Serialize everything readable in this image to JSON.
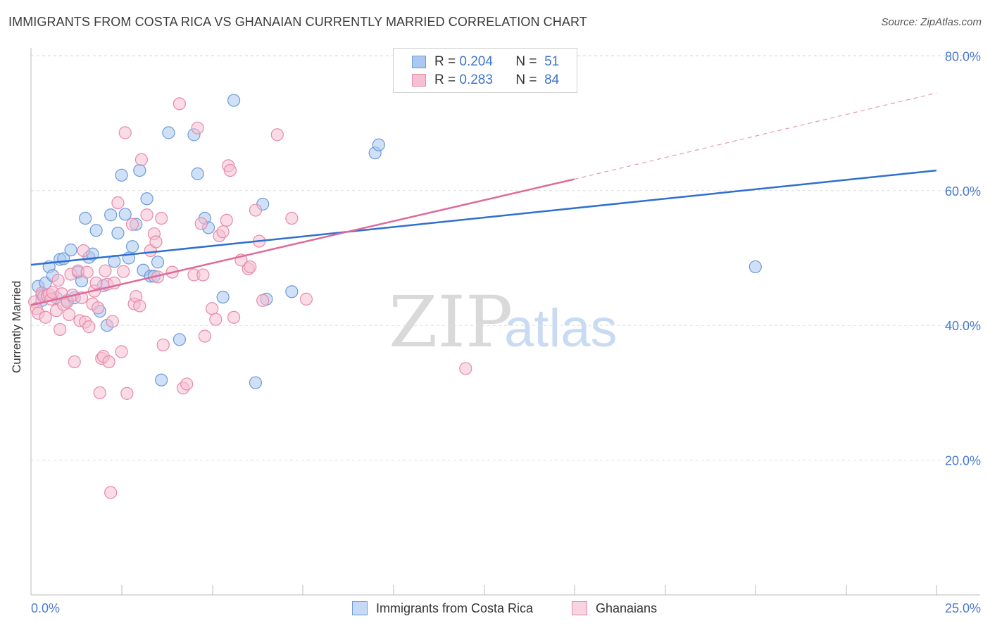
{
  "title": "IMMIGRANTS FROM COSTA RICA VS GHANAIAN CURRENTLY MARRIED CORRELATION CHART",
  "source": "Source: ZipAtlas.com",
  "watermark": {
    "zip": "ZIP",
    "atlas": "atlas"
  },
  "legend": {
    "r_label": "R =",
    "n_label": "N =",
    "series": [
      {
        "r": "0.204",
        "n": "51"
      },
      {
        "r": "0.283",
        "n": "84"
      }
    ]
  },
  "colors": {
    "blue_fill": "#aac8f0",
    "blue_stroke": "#6b9ad8",
    "blue_line": "#2f6fd0",
    "pink_fill": "#f6bfd2",
    "pink_stroke": "#e68aa8",
    "pink_line": "#e06a98",
    "grid": "#dedede",
    "tick_text": "#4a7bd0"
  },
  "chart_data": {
    "type": "scatter",
    "title": "IMMIGRANTS FROM COSTA RICA VS GHANAIAN CURRENTLY MARRIED CORRELATION CHART",
    "xlabel": "",
    "ylabel": "Currently Married",
    "xlim": [
      0,
      25
    ],
    "ylim": [
      0,
      80
    ],
    "x_tick_labels": [
      "0.0%",
      "25.0%"
    ],
    "y_ticks": [
      20,
      40,
      60,
      80
    ],
    "y_tick_labels": [
      "20.0%",
      "40.0%",
      "60.0%",
      "80.0%"
    ],
    "grid": true,
    "series": [
      {
        "name": "Immigrants from Costa Rica",
        "color": "blue",
        "trend": {
          "x0": 0,
          "y0": 49.0,
          "x1": 25,
          "y1": 63.0,
          "dashed_from": null
        },
        "points": [
          [
            0.2,
            45.8
          ],
          [
            0.3,
            44.5
          ],
          [
            0.3,
            43.7
          ],
          [
            0.4,
            46.3
          ],
          [
            0.5,
            48.7
          ],
          [
            0.6,
            47.4
          ],
          [
            0.7,
            44.1
          ],
          [
            0.8,
            49.8
          ],
          [
            0.9,
            49.9
          ],
          [
            1.0,
            43.7
          ],
          [
            1.1,
            51.2
          ],
          [
            1.2,
            44.1
          ],
          [
            1.3,
            47.9
          ],
          [
            1.4,
            46.6
          ],
          [
            1.5,
            55.9
          ],
          [
            1.6,
            50.1
          ],
          [
            1.7,
            50.6
          ],
          [
            1.8,
            54.1
          ],
          [
            1.9,
            42.1
          ],
          [
            2.0,
            45.9
          ],
          [
            2.1,
            40.0
          ],
          [
            2.2,
            56.4
          ],
          [
            2.3,
            49.5
          ],
          [
            2.4,
            53.7
          ],
          [
            2.5,
            62.3
          ],
          [
            2.6,
            56.5
          ],
          [
            2.7,
            50.0
          ],
          [
            2.8,
            51.7
          ],
          [
            2.9,
            55.0
          ],
          [
            3.0,
            63.0
          ],
          [
            3.1,
            48.2
          ],
          [
            3.2,
            58.8
          ],
          [
            3.3,
            47.3
          ],
          [
            3.4,
            47.3
          ],
          [
            3.5,
            49.4
          ],
          [
            3.6,
            31.9
          ],
          [
            3.8,
            68.6
          ],
          [
            4.1,
            37.9
          ],
          [
            4.5,
            68.3
          ],
          [
            4.6,
            62.5
          ],
          [
            4.8,
            55.9
          ],
          [
            4.9,
            54.5
          ],
          [
            5.3,
            44.2
          ],
          [
            5.6,
            73.4
          ],
          [
            6.2,
            31.5
          ],
          [
            6.4,
            58.0
          ],
          [
            6.5,
            43.9
          ],
          [
            7.2,
            45.0
          ],
          [
            9.5,
            65.6
          ],
          [
            9.6,
            66.8
          ],
          [
            20.0,
            48.7
          ]
        ]
      },
      {
        "name": "Ghanaians",
        "color": "pink",
        "trend": {
          "x0": 0,
          "y0": 43.0,
          "x1": 15,
          "y1": 61.7,
          "dashed_to": 25,
          "dashed_y": 74.5
        },
        "points": [
          [
            0.1,
            43.5
          ],
          [
            0.15,
            42.5
          ],
          [
            0.2,
            41.8
          ],
          [
            0.3,
            44.8
          ],
          [
            0.35,
            44.3
          ],
          [
            0.4,
            41.2
          ],
          [
            0.45,
            44.4
          ],
          [
            0.5,
            44.6
          ],
          [
            0.55,
            43.9
          ],
          [
            0.6,
            44.9
          ],
          [
            0.7,
            42.2
          ],
          [
            0.75,
            46.7
          ],
          [
            0.8,
            39.4
          ],
          [
            0.85,
            44.7
          ],
          [
            0.9,
            43.1
          ],
          [
            1.0,
            43.5
          ],
          [
            1.05,
            41.6
          ],
          [
            1.1,
            47.6
          ],
          [
            1.15,
            44.5
          ],
          [
            1.2,
            34.6
          ],
          [
            1.3,
            48.1
          ],
          [
            1.35,
            40.7
          ],
          [
            1.4,
            44.1
          ],
          [
            1.45,
            51.1
          ],
          [
            1.5,
            40.5
          ],
          [
            1.55,
            47.9
          ],
          [
            1.6,
            39.8
          ],
          [
            1.7,
            43.2
          ],
          [
            1.75,
            45.1
          ],
          [
            1.8,
            46.3
          ],
          [
            1.85,
            42.6
          ],
          [
            1.9,
            30.0
          ],
          [
            1.95,
            35.1
          ],
          [
            2.0,
            35.4
          ],
          [
            2.05,
            48.1
          ],
          [
            2.1,
            46.1
          ],
          [
            2.15,
            34.6
          ],
          [
            2.2,
            15.2
          ],
          [
            2.25,
            40.6
          ],
          [
            2.3,
            46.3
          ],
          [
            2.4,
            58.2
          ],
          [
            2.5,
            36.1
          ],
          [
            2.55,
            48.0
          ],
          [
            2.6,
            68.6
          ],
          [
            2.65,
            29.9
          ],
          [
            2.8,
            55.0
          ],
          [
            2.85,
            43.2
          ],
          [
            2.9,
            44.3
          ],
          [
            3.0,
            42.9
          ],
          [
            3.05,
            64.6
          ],
          [
            3.2,
            56.4
          ],
          [
            3.3,
            51.1
          ],
          [
            3.4,
            53.6
          ],
          [
            3.45,
            52.4
          ],
          [
            3.5,
            47.2
          ],
          [
            3.6,
            55.9
          ],
          [
            3.65,
            37.1
          ],
          [
            3.9,
            47.9
          ],
          [
            4.1,
            72.9
          ],
          [
            4.2,
            30.7
          ],
          [
            4.3,
            31.3
          ],
          [
            4.5,
            47.5
          ],
          [
            4.6,
            69.3
          ],
          [
            4.7,
            55.1
          ],
          [
            4.75,
            47.5
          ],
          [
            4.8,
            38.4
          ],
          [
            5.0,
            42.5
          ],
          [
            5.1,
            40.9
          ],
          [
            5.2,
            53.3
          ],
          [
            5.3,
            53.9
          ],
          [
            5.4,
            55.6
          ],
          [
            5.45,
            63.7
          ],
          [
            5.5,
            63.0
          ],
          [
            5.6,
            41.2
          ],
          [
            5.8,
            49.7
          ],
          [
            6.0,
            48.4
          ],
          [
            6.05,
            48.7
          ],
          [
            6.2,
            57.1
          ],
          [
            6.3,
            52.5
          ],
          [
            6.4,
            43.7
          ],
          [
            6.8,
            68.3
          ],
          [
            7.2,
            55.9
          ],
          [
            7.6,
            43.9
          ],
          [
            12.0,
            33.6
          ]
        ]
      }
    ]
  },
  "bottom_legend": {
    "items": [
      {
        "label": "Immigrants from Costa Rica"
      },
      {
        "label": "Ghanaians"
      }
    ]
  }
}
